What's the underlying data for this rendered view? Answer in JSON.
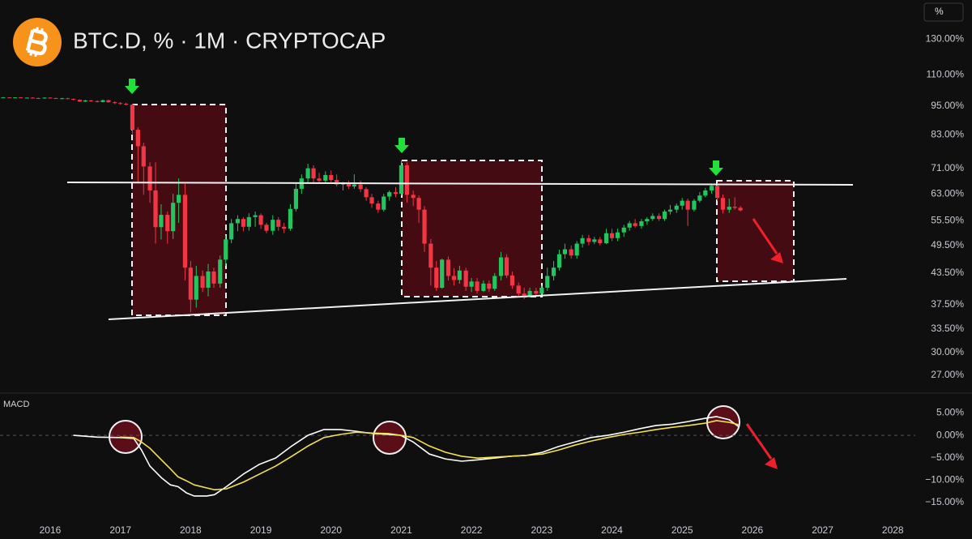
{
  "unit_label": "%",
  "chart_data": [
    {
      "type": "candlestick",
      "title": "BTC.D, % · 1M · CRYPTOCAP",
      "log_scale": true,
      "up_color": "#22c55e",
      "down_color": "#f23645",
      "xlim": [
        2015.285,
        2028.32
      ],
      "ylim": [
        24.8,
        156
      ],
      "yticks": [
        {
          "value": 130,
          "label": "130.00%"
        },
        {
          "value": 110,
          "label": "110.00%"
        },
        {
          "value": 95,
          "label": "95.00%"
        },
        {
          "value": 83,
          "label": "83.00%"
        },
        {
          "value": 71,
          "label": "71.00%"
        },
        {
          "value": 63,
          "label": "63.00%"
        },
        {
          "value": 55.5,
          "label": "55.50%"
        },
        {
          "value": 49.5,
          "label": "49.50%"
        },
        {
          "value": 43.5,
          "label": "43.50%"
        },
        {
          "value": 37.5,
          "label": "37.50%"
        },
        {
          "value": 33.5,
          "label": "33.50%"
        },
        {
          "value": 30,
          "label": "30.00%"
        },
        {
          "value": 27,
          "label": "27.00%"
        }
      ],
      "x": [
        2015.33,
        2015.42,
        2015.5,
        2015.58,
        2015.67,
        2015.75,
        2015.83,
        2015.92,
        2016.0,
        2016.08,
        2016.17,
        2016.25,
        2016.33,
        2016.42,
        2016.5,
        2016.58,
        2016.67,
        2016.75,
        2016.83,
        2016.92,
        2017.0,
        2017.08,
        2017.17,
        2017.25,
        2017.33,
        2017.42,
        2017.5,
        2017.58,
        2017.67,
        2017.75,
        2017.83,
        2017.92,
        2018.0,
        2018.08,
        2018.17,
        2018.25,
        2018.33,
        2018.42,
        2018.5,
        2018.58,
        2018.67,
        2018.75,
        2018.83,
        2018.92,
        2019.0,
        2019.08,
        2019.17,
        2019.25,
        2019.33,
        2019.42,
        2019.5,
        2019.58,
        2019.67,
        2019.75,
        2019.83,
        2019.92,
        2020.0,
        2020.08,
        2020.17,
        2020.25,
        2020.33,
        2020.42,
        2020.5,
        2020.58,
        2020.67,
        2020.75,
        2020.83,
        2020.92,
        2021.0,
        2021.08,
        2021.17,
        2021.25,
        2021.33,
        2021.42,
        2021.5,
        2021.58,
        2021.67,
        2021.75,
        2021.83,
        2021.92,
        2022.0,
        2022.08,
        2022.17,
        2022.25,
        2022.33,
        2022.42,
        2022.5,
        2022.58,
        2022.67,
        2022.75,
        2022.83,
        2022.92,
        2023.0,
        2023.08,
        2023.17,
        2023.25,
        2023.33,
        2023.42,
        2023.5,
        2023.58,
        2023.67,
        2023.75,
        2023.83,
        2023.92,
        2024.0,
        2024.08,
        2024.17,
        2024.25,
        2024.33,
        2024.42,
        2024.5,
        2024.58,
        2024.67,
        2024.75,
        2024.83,
        2024.92,
        2025.0,
        2025.08,
        2025.17,
        2025.25,
        2025.33,
        2025.42,
        2025.5,
        2025.58,
        2025.67,
        2025.75,
        2025.83
      ],
      "open": [
        98.9,
        98.9,
        98.8,
        98.9,
        98.7,
        98.8,
        98.6,
        98.5,
        98.8,
        98.6,
        98.4,
        98.5,
        98.2,
        97.8,
        97.0,
        97.5,
        97.2,
        96.8,
        97.6,
        96.7,
        96.3,
        96.0,
        95.6,
        85.0,
        78.7,
        71.6,
        64.0,
        53.9,
        57.1,
        52.9,
        60.4,
        62.7,
        44.6,
        38.4,
        42.9,
        40.6,
        43.8,
        41.4,
        46.3,
        50.9,
        54.9,
        56.0,
        54.0,
        56.5,
        57.0,
        54.5,
        53.0,
        55.8,
        54.0,
        53.5,
        58.7,
        64.5,
        67.7,
        71.0,
        67.7,
        67.0,
        68.8,
        67.2,
        65.8,
        66.2,
        65.2,
        65.8,
        64.4,
        62.0,
        60.2,
        58.5,
        62.2,
        63.5,
        63.0,
        72.0,
        62.7,
        61.8,
        58.5,
        49.9,
        44.6,
        40.6,
        46.3,
        42.9,
        42.1,
        44.0,
        40.8,
        41.8,
        40.0,
        41.4,
        40.4,
        42.9,
        46.8,
        43.0,
        41.0,
        39.5,
        39.0,
        40.0,
        39.5,
        40.6,
        42.9,
        44.6,
        47.5,
        48.6,
        47.2,
        49.9,
        51.2,
        50.3,
        50.9,
        50.0,
        52.4,
        51.2,
        52.6,
        53.8,
        54.9,
        54.2,
        55.4,
        56.0,
        56.8,
        56.0,
        58.0,
        58.5,
        59.6,
        61.0,
        58.5,
        61.0,
        62.5,
        64.0,
        65.4,
        61.8,
        58.5,
        59.3,
        59.0
      ],
      "high": [
        99.1,
        99.0,
        99.0,
        99.1,
        98.9,
        99.0,
        98.8,
        98.9,
        99.0,
        98.8,
        98.7,
        98.7,
        98.4,
        98.0,
        97.8,
        97.7,
        97.6,
        97.9,
        97.8,
        97.2,
        96.8,
        96.5,
        96.0,
        86.0,
        80.0,
        73.0,
        73.0,
        60.0,
        58.0,
        63.0,
        67.7,
        66.0,
        46.0,
        45.0,
        44.0,
        45.4,
        44.6,
        47.2,
        51.9,
        56.0,
        57.0,
        56.5,
        57.5,
        58.0,
        57.5,
        55.0,
        57.0,
        56.5,
        55.0,
        60.0,
        66.0,
        69.0,
        72.5,
        72.0,
        69.5,
        70.0,
        70.3,
        69.0,
        66.6,
        67.0,
        69.0,
        67.0,
        65.0,
        63.0,
        61.0,
        63.0,
        64.0,
        65.0,
        73.6,
        73.0,
        64.0,
        62.5,
        59.5,
        51.0,
        46.0,
        46.5,
        47.0,
        44.5,
        45.0,
        44.6,
        42.5,
        42.5,
        42.0,
        42.0,
        43.5,
        48.0,
        47.5,
        43.8,
        41.6,
        40.6,
        40.6,
        40.6,
        41.0,
        44.6,
        46.0,
        48.5,
        49.9,
        49.5,
        50.5,
        52.0,
        52.0,
        51.5,
        51.5,
        53.5,
        53.5,
        53.5,
        54.5,
        55.5,
        56.0,
        56.0,
        56.5,
        57.5,
        57.5,
        58.5,
        59.8,
        60.2,
        61.8,
        61.6,
        61.5,
        63.5,
        64.8,
        65.8,
        66.2,
        62.8,
        61.6,
        62.0,
        59.5
      ],
      "low": [
        98.7,
        98.6,
        98.6,
        98.6,
        98.5,
        98.5,
        98.3,
        98.3,
        98.5,
        98.2,
        98.1,
        98.0,
        97.6,
        96.8,
        96.8,
        96.9,
        96.6,
        96.6,
        96.5,
        95.8,
        95.6,
        95.3,
        83.4,
        66.4,
        62.7,
        60.4,
        49.9,
        50.9,
        49.9,
        51.0,
        55.0,
        42.0,
        36.2,
        37.0,
        39.8,
        39.0,
        40.6,
        40.6,
        45.0,
        50.0,
        52.9,
        52.9,
        53.0,
        54.0,
        53.5,
        52.4,
        52.0,
        53.0,
        52.4,
        53.0,
        58.0,
        63.0,
        66.0,
        66.0,
        66.0,
        66.0,
        66.5,
        65.2,
        64.0,
        64.5,
        64.5,
        63.5,
        61.0,
        59.0,
        57.6,
        58.0,
        61.0,
        62.0,
        62.5,
        60.4,
        59.5,
        55.0,
        48.0,
        41.0,
        40.0,
        40.4,
        42.0,
        41.0,
        41.4,
        40.0,
        39.8,
        39.5,
        39.8,
        39.8,
        40.0,
        42.0,
        42.5,
        40.4,
        39.0,
        38.5,
        38.8,
        39.0,
        39.0,
        40.0,
        42.0,
        44.0,
        46.5,
        46.5,
        46.5,
        49.0,
        49.5,
        49.8,
        49.5,
        49.8,
        50.5,
        50.5,
        51.5,
        53.0,
        53.8,
        53.5,
        54.5,
        55.5,
        55.5,
        55.5,
        57.2,
        57.6,
        58.5,
        54.2,
        58.0,
        60.5,
        62.0,
        63.0,
        61.0,
        57.5,
        57.6,
        58.5,
        58.0
      ],
      "close": [
        98.9,
        98.8,
        98.9,
        98.7,
        98.8,
        98.6,
        98.5,
        98.8,
        98.6,
        98.4,
        98.5,
        98.2,
        97.8,
        97.0,
        97.5,
        97.2,
        96.8,
        97.6,
        96.7,
        96.3,
        96.0,
        95.6,
        85.0,
        78.7,
        71.6,
        64.0,
        53.9,
        57.1,
        52.9,
        60.4,
        62.7,
        44.6,
        38.4,
        42.9,
        40.6,
        43.8,
        41.4,
        46.3,
        50.9,
        54.9,
        56.0,
        54.0,
        56.5,
        57.0,
        54.5,
        53.0,
        55.8,
        54.0,
        53.5,
        58.7,
        64.5,
        67.7,
        71.0,
        67.7,
        67.0,
        68.8,
        67.2,
        65.8,
        66.2,
        65.2,
        65.8,
        64.4,
        62.0,
        60.2,
        58.5,
        62.2,
        63.5,
        63.0,
        72.0,
        62.7,
        61.8,
        58.5,
        49.9,
        44.6,
        40.6,
        46.3,
        42.9,
        42.1,
        44.0,
        40.8,
        41.8,
        40.0,
        41.4,
        40.4,
        42.9,
        46.8,
        43.0,
        41.0,
        39.5,
        39.0,
        40.0,
        39.5,
        40.6,
        42.9,
        44.6,
        47.5,
        48.6,
        47.2,
        49.9,
        51.2,
        50.3,
        50.9,
        50.0,
        52.4,
        51.2,
        52.6,
        53.8,
        54.9,
        54.2,
        55.4,
        56.0,
        56.8,
        56.0,
        58.0,
        58.5,
        59.6,
        61.0,
        58.5,
        61.0,
        62.5,
        64.0,
        65.4,
        61.8,
        58.5,
        59.3,
        59.0,
        58.3
      ]
    },
    {
      "type": "line",
      "title": "MACD",
      "zero_line": true,
      "xlim": [
        2015.285,
        2028.32
      ],
      "ylim": [
        -18.7,
        9.1
      ],
      "xticks": [
        2016,
        2017,
        2018,
        2019,
        2020,
        2021,
        2022,
        2023,
        2024,
        2025,
        2026,
        2027,
        2028
      ],
      "yticks": [
        {
          "value": 5,
          "label": "5.00%"
        },
        {
          "value": 0,
          "label": "0.00%"
        },
        {
          "value": -5,
          "label": "−5.00%"
        },
        {
          "value": -10,
          "label": "−10.00%"
        },
        {
          "value": -15,
          "label": "−15.00%"
        }
      ],
      "x": [
        2016.33,
        2016.67,
        2016.99,
        2017.19,
        2017.3,
        2017.42,
        2017.59,
        2017.71,
        2017.82,
        2017.94,
        2018.05,
        2018.23,
        2018.34,
        2018.51,
        2018.75,
        2018.98,
        2019.21,
        2019.44,
        2019.67,
        2019.9,
        2020.13,
        2020.36,
        2020.59,
        2020.82,
        2020.99,
        2021.17,
        2021.4,
        2021.63,
        2021.86,
        2022.09,
        2022.32,
        2022.55,
        2022.78,
        2023.01,
        2023.24,
        2023.47,
        2023.7,
        2023.94,
        2024.17,
        2024.4,
        2024.63,
        2024.86,
        2025.09,
        2025.32,
        2025.49,
        2025.67,
        2025.8
      ],
      "series": [
        {
          "color": "#ffffff",
          "values": [
            0,
            -0.4,
            -0.5,
            -0.7,
            -3.3,
            -6.9,
            -9.6,
            -11.1,
            -11.5,
            -12.9,
            -13.6,
            -13.6,
            -13.3,
            -11.5,
            -8.7,
            -6.5,
            -5.1,
            -2.4,
            0,
            1.3,
            1.3,
            0.9,
            0.4,
            0.2,
            0,
            -1.5,
            -4.2,
            -5.3,
            -5.8,
            -5.5,
            -5.1,
            -4.7,
            -4.5,
            -3.8,
            -2.5,
            -1.5,
            -0.5,
            0,
            0.7,
            1.5,
            2.2,
            2.5,
            3.1,
            3.8,
            4.2,
            3.5,
            2.0
          ]
        },
        {
          "color": "#f5e050",
          "values": [
            null,
            null,
            -0.4,
            -0.5,
            -1.5,
            -2.9,
            -5.6,
            -7.5,
            -9.3,
            -10.2,
            -11.1,
            -11.8,
            -12.2,
            -12.0,
            -10.5,
            -8.7,
            -6.9,
            -4.7,
            -2.4,
            -0.5,
            0.2,
            0.7,
            0.5,
            0.4,
            0,
            -0.5,
            -2.4,
            -3.8,
            -4.7,
            -5.1,
            -4.9,
            -4.7,
            -4.5,
            -4.2,
            -3.3,
            -2.2,
            -1.3,
            -0.5,
            0.2,
            0.7,
            1.3,
            1.8,
            2.2,
            2.7,
            3.3,
            2.9,
            2.4
          ]
        }
      ]
    }
  ]
}
